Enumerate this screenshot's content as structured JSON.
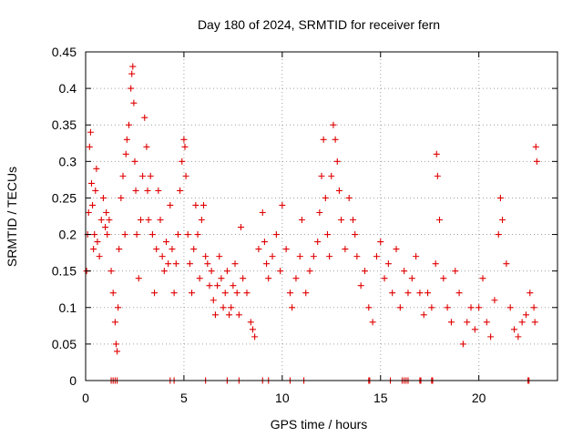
{
  "chart_data": {
    "type": "scatter",
    "title": "Day 180 of 2024, SRMTID for receiver fern",
    "xlabel": "GPS time / hours",
    "ylabel": "SRMTID / TECUs",
    "xlim": [
      0,
      24
    ],
    "ylim": [
      0,
      0.45
    ],
    "xticks": [
      0,
      5,
      10,
      15,
      20
    ],
    "xtick_labels": [
      "0",
      "5",
      "10",
      "15",
      "20"
    ],
    "yticks": [
      0,
      0.05,
      0.1,
      0.15,
      0.2,
      0.25,
      0.3,
      0.35,
      0.4,
      0.45
    ],
    "ytick_labels": [
      "0",
      "0.05",
      "0.1",
      "0.15",
      "0.2",
      "0.25",
      "0.3",
      "0.35",
      "0.4",
      "0.45"
    ],
    "grid": true,
    "marker": "+",
    "series_color": "#e00000",
    "series": [
      {
        "name": "SRMTID",
        "x": [
          0.05,
          0.1,
          0.15,
          0.2,
          0.25,
          0.3,
          0.35,
          0.4,
          0.45,
          0.5,
          0.55,
          0.6,
          0.7,
          0.8,
          0.9,
          1.0,
          1.05,
          1.1,
          1.2,
          1.3,
          1.4,
          1.5,
          1.55,
          1.6,
          1.65,
          1.7,
          1.8,
          1.9,
          2.0,
          2.05,
          2.1,
          2.2,
          2.3,
          2.35,
          2.4,
          2.45,
          2.5,
          2.55,
          2.6,
          2.7,
          2.8,
          2.9,
          3.0,
          3.1,
          3.15,
          3.2,
          3.3,
          3.4,
          3.5,
          3.6,
          3.7,
          3.8,
          3.9,
          4.0,
          4.1,
          4.2,
          4.3,
          4.4,
          4.5,
          4.6,
          4.7,
          4.8,
          4.9,
          5.0,
          5.05,
          5.1,
          5.2,
          5.3,
          5.4,
          5.5,
          5.6,
          5.7,
          5.8,
          5.9,
          6.0,
          6.1,
          6.2,
          6.3,
          6.4,
          6.5,
          6.6,
          6.7,
          6.8,
          6.9,
          7.0,
          7.1,
          7.2,
          7.3,
          7.4,
          7.5,
          7.6,
          7.7,
          7.8,
          7.9,
          8.0,
          8.2,
          8.4,
          8.5,
          8.6,
          8.8,
          9.0,
          9.1,
          9.2,
          9.3,
          9.5,
          9.7,
          9.9,
          10.0,
          10.2,
          10.4,
          10.5,
          10.7,
          10.9,
          11.0,
          11.2,
          11.4,
          11.6,
          11.8,
          11.9,
          12.0,
          12.1,
          12.2,
          12.3,
          12.4,
          12.5,
          12.6,
          12.7,
          12.8,
          12.9,
          13.0,
          13.2,
          13.4,
          13.6,
          13.7,
          13.8,
          14.0,
          14.2,
          14.4,
          14.6,
          14.8,
          15.0,
          15.2,
          15.4,
          15.6,
          15.8,
          16.0,
          16.2,
          16.4,
          16.6,
          16.8,
          17.0,
          17.2,
          17.4,
          17.6,
          17.8,
          17.85,
          17.9,
          18.0,
          18.2,
          18.4,
          18.6,
          18.8,
          19.0,
          19.2,
          19.4,
          19.6,
          19.8,
          20.0,
          20.2,
          20.4,
          20.6,
          20.8,
          21.0,
          21.1,
          21.2,
          21.4,
          21.6,
          21.8,
          22.0,
          22.2,
          22.4,
          22.6,
          22.8,
          22.85,
          22.9,
          22.95
        ],
        "y": [
          0.15,
          0.2,
          0.23,
          0.32,
          0.34,
          0.27,
          0.24,
          0.18,
          0.2,
          0.26,
          0.29,
          0.19,
          0.17,
          0.22,
          0.25,
          0.21,
          0.23,
          0.2,
          0.22,
          0.15,
          0.12,
          0.08,
          0.05,
          0.04,
          0.1,
          0.18,
          0.25,
          0.28,
          0.2,
          0.31,
          0.33,
          0.35,
          0.4,
          0.42,
          0.43,
          0.38,
          0.3,
          0.26,
          0.2,
          0.14,
          0.22,
          0.28,
          0.36,
          0.32,
          0.26,
          0.22,
          0.28,
          0.2,
          0.12,
          0.18,
          0.26,
          0.22,
          0.17,
          0.15,
          0.19,
          0.16,
          0.24,
          0.18,
          0.12,
          0.16,
          0.2,
          0.26,
          0.3,
          0.33,
          0.32,
          0.28,
          0.2,
          0.16,
          0.12,
          0.18,
          0.24,
          0.2,
          0.14,
          0.22,
          0.24,
          0.17,
          0.16,
          0.13,
          0.15,
          0.11,
          0.09,
          0.13,
          0.17,
          0.14,
          0.1,
          0.12,
          0.15,
          0.09,
          0.1,
          0.13,
          0.16,
          0.12,
          0.09,
          0.21,
          0.14,
          0.12,
          0.08,
          0.07,
          0.06,
          0.18,
          0.23,
          0.19,
          0.16,
          0.14,
          0.17,
          0.2,
          0.15,
          0.24,
          0.18,
          0.12,
          0.1,
          0.14,
          0.17,
          0.22,
          0.12,
          0.15,
          0.17,
          0.19,
          0.23,
          0.28,
          0.33,
          0.25,
          0.2,
          0.17,
          0.28,
          0.35,
          0.33,
          0.3,
          0.26,
          0.22,
          0.18,
          0.25,
          0.22,
          0.2,
          0.17,
          0.13,
          0.15,
          0.1,
          0.08,
          0.17,
          0.19,
          0.14,
          0.16,
          0.12,
          0.18,
          0.1,
          0.15,
          0.12,
          0.14,
          0.17,
          0.12,
          0.09,
          0.12,
          0.1,
          0.16,
          0.31,
          0.28,
          0.22,
          0.14,
          0.1,
          0.08,
          0.15,
          0.12,
          0.05,
          0.08,
          0.1,
          0.07,
          0.1,
          0.14,
          0.08,
          0.06,
          0.11,
          0.2,
          0.25,
          0.22,
          0.16,
          0.1,
          0.07,
          0.06,
          0.08,
          0.09,
          0.12,
          0.1,
          0.08,
          0.32,
          0.3
        ]
      }
    ],
    "zero_markers_x": [
      1.3,
      1.4,
      1.5,
      1.6,
      4.3,
      4.5,
      6.1,
      7.2,
      7.8,
      9.0,
      9.3,
      10.4,
      11.1,
      14.4,
      14.45,
      15.5,
      16.1,
      16.2,
      16.3,
      16.4,
      17.0,
      17.05,
      17.6,
      17.65,
      22.5,
      22.55
    ]
  }
}
